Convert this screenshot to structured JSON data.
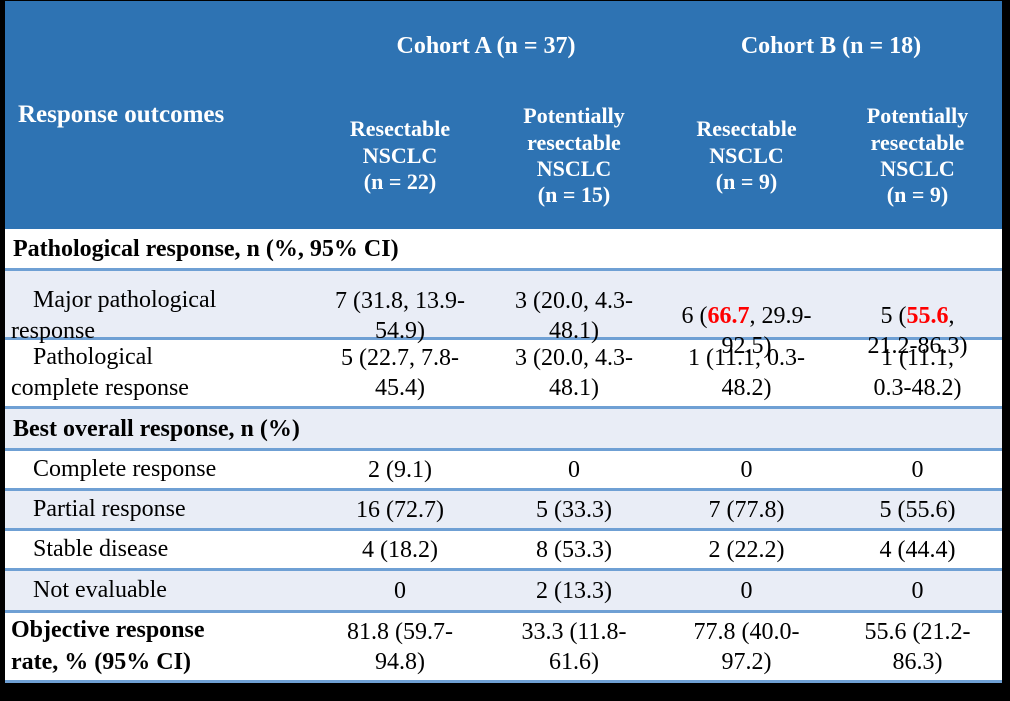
{
  "colors": {
    "header_bg": "#2E73B3",
    "header_text": "#FFFFFF",
    "alt_row_bg": "#E9EDF6",
    "row_border_blue": "#6FA0D4",
    "highlight_red": "#FF0000",
    "outer_frame": "#000000",
    "body_text": "#000000"
  },
  "header": {
    "response_outcomes": "Response outcomes",
    "cohort_a": "Cohort A (n = 37)",
    "cohort_b": "Cohort B (n = 18)",
    "col_resectable_a": "Resectable\nNSCLC\n(n = 22)",
    "col_potentially_a": "Potentially\nresectable\nNSCLC\n(n = 15)",
    "col_resectable_b": "Resectable\nNSCLC\n(n = 9)",
    "col_potentially_b": "Potentially\nresectable\nNSCLC\n(n = 9)"
  },
  "rows": {
    "pathological_section": {
      "label": "Pathological response, n (%, 95% CI)"
    },
    "major_pathological": {
      "label": "Major pathological\nresponse",
      "resectable_a": "7 (31.8, 13.9-\n54.9)",
      "potentially_a": "3 (20.0, 4.3-\n48.1)",
      "resectable_b_pre": "6 (",
      "resectable_b_red": "66.7",
      "resectable_b_post": ", 29.9-\n92.5)",
      "potentially_b_pre": "5 (",
      "potentially_b_red": "55.6",
      "potentially_b_post": ",\n21.2-86.3)"
    },
    "pathological_complete": {
      "label": "Pathological\ncomplete response",
      "resectable_a": "5 (22.7, 7.8-\n45.4)",
      "potentially_a": "3 (20.0, 4.3-\n48.1)",
      "resectable_b": "1 (11.1, 0.3-\n48.2)",
      "potentially_b": "1 (11.1,\n0.3-48.2)"
    },
    "best_overall_section": {
      "label": "Best overall response, n (%)"
    },
    "complete_response": {
      "label": "Complete response",
      "resectable_a": "2 (9.1)",
      "potentially_a": "0",
      "resectable_b": "0",
      "potentially_b": "0"
    },
    "partial_response": {
      "label": "Partial response",
      "resectable_a": "16 (72.7)",
      "potentially_a": "5 (33.3)",
      "resectable_b": "7 (77.8)",
      "potentially_b": "5 (55.6)"
    },
    "stable_disease": {
      "label": "Stable disease",
      "resectable_a": "4 (18.2)",
      "potentially_a": "8 (53.3)",
      "resectable_b": "2 (22.2)",
      "potentially_b": "4 (44.4)"
    },
    "not_evaluable": {
      "label": "Not evaluable",
      "resectable_a": "0",
      "potentially_a": "2 (13.3)",
      "resectable_b": "0",
      "potentially_b": "0"
    },
    "objective_response_rate": {
      "label": "Objective response\nrate, % (95% CI)",
      "resectable_a": "81.8 (59.7-\n94.8)",
      "potentially_a": "33.3 (11.8-\n61.6)",
      "resectable_b": "77.8 (40.0-\n97.2)",
      "potentially_b": "55.6 (21.2-\n86.3)"
    }
  }
}
